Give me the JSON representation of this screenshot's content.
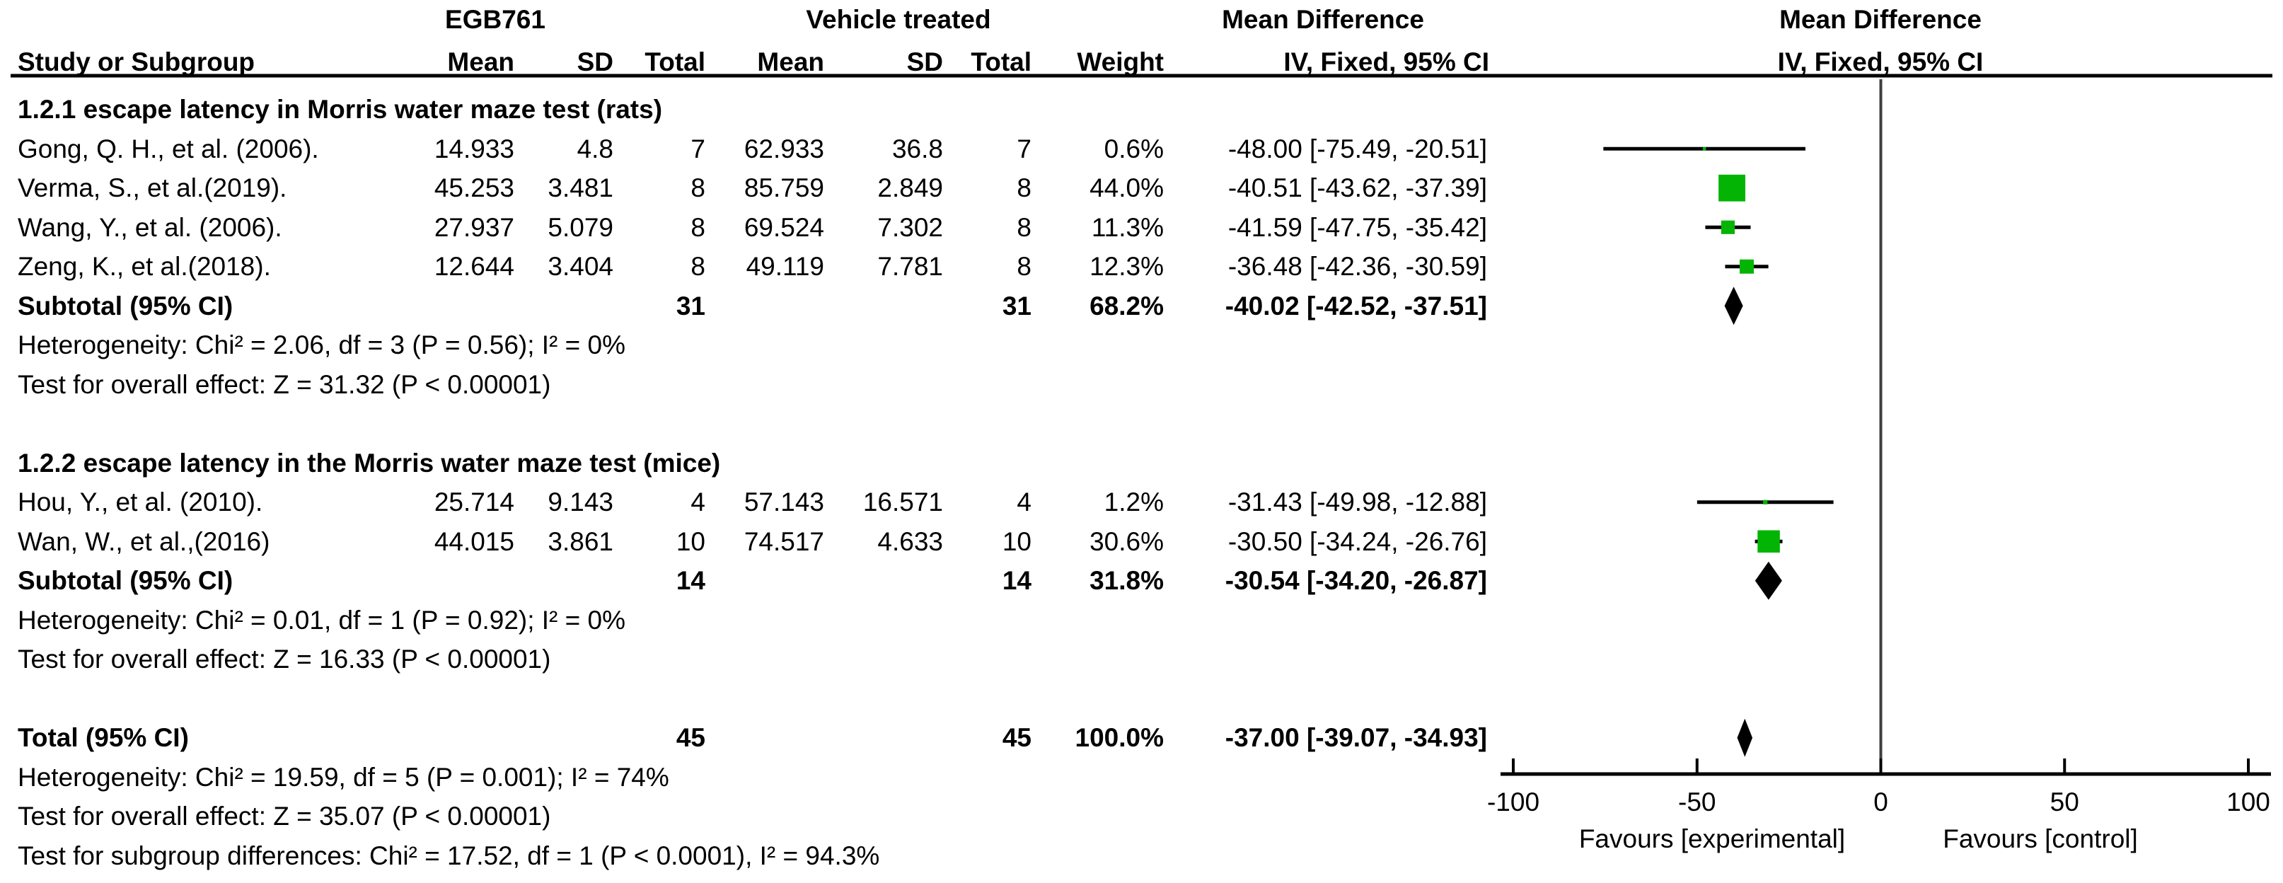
{
  "header": {
    "groups": {
      "egb761": "EGB761",
      "vehicle": "Vehicle treated",
      "md_text_col": "Mean Difference",
      "md_plot_col": "Mean Difference"
    },
    "cols": {
      "study": "Study or Subgroup",
      "mean1": "Mean",
      "sd1": "SD",
      "total1": "Total",
      "mean2": "Mean",
      "sd2": "SD",
      "total2": "Total",
      "weight": "Weight",
      "ci": "IV, Fixed, 95% CI",
      "ci_plot": "IV, Fixed, 95% CI"
    }
  },
  "rows": [
    {
      "type": "subgroup_header",
      "label": "1.2.1 escape latency in Morris water maze test (rats)"
    },
    {
      "type": "study",
      "study": "Gong, Q. H., et al. (2006).",
      "mean1": "14.933",
      "sd1": "4.8",
      "total1": "7",
      "mean2": "62.933",
      "sd2": "36.8",
      "total2": "7",
      "weight": "0.6%",
      "ci_text": "-48.00 [-75.49, -20.51]",
      "md": -48.0,
      "lo": -75.49,
      "hi": -20.51,
      "weight_pct": 0.6
    },
    {
      "type": "study",
      "study": "Verma, S., et al.(2019).",
      "mean1": "45.253",
      "sd1": "3.481",
      "total1": "8",
      "mean2": "85.759",
      "sd2": "2.849",
      "total2": "8",
      "weight": "44.0%",
      "ci_text": "-40.51 [-43.62, -37.39]",
      "md": -40.51,
      "lo": -43.62,
      "hi": -37.39,
      "weight_pct": 44.0
    },
    {
      "type": "study",
      "study": "Wang, Y., et al. (2006).",
      "mean1": "27.937",
      "sd1": "5.079",
      "total1": "8",
      "mean2": "69.524",
      "sd2": "7.302",
      "total2": "8",
      "weight": "11.3%",
      "ci_text": "-41.59 [-47.75, -35.42]",
      "md": -41.59,
      "lo": -47.75,
      "hi": -35.42,
      "weight_pct": 11.3
    },
    {
      "type": "study",
      "study": "Zeng, K., et al.(2018).",
      "mean1": "12.644",
      "sd1": "3.404",
      "total1": "8",
      "mean2": "49.119",
      "sd2": "7.781",
      "total2": "8",
      "weight": "12.3%",
      "ci_text": "-36.48 [-42.36, -30.59]",
      "md": -36.48,
      "lo": -42.36,
      "hi": -30.59,
      "weight_pct": 12.3
    },
    {
      "type": "subtotal",
      "label": "Subtotal (95% CI)",
      "total1": "31",
      "total2": "31",
      "weight": "68.2%",
      "ci_text": "-40.02 [-42.52, -37.51]",
      "md": -40.02,
      "lo": -42.52,
      "hi": -37.51
    },
    {
      "type": "note",
      "label": "Heterogeneity: Chi² = 2.06, df = 3 (P = 0.56); I² = 0%"
    },
    {
      "type": "note",
      "label": "Test for overall effect: Z = 31.32 (P < 0.00001)"
    },
    {
      "type": "spacer"
    },
    {
      "type": "subgroup_header",
      "label": "1.2.2 escape latency in the Morris water maze test (mice)"
    },
    {
      "type": "study",
      "study": "Hou, Y., et al. (2010).",
      "mean1": "25.714",
      "sd1": "9.143",
      "total1": "4",
      "mean2": "57.143",
      "sd2": "16.571",
      "total2": "4",
      "weight": "1.2%",
      "ci_text": "-31.43 [-49.98, -12.88]",
      "md": -31.43,
      "lo": -49.98,
      "hi": -12.88,
      "weight_pct": 1.2
    },
    {
      "type": "study",
      "study": "Wan, W., et al.,(2016)",
      "mean1": "44.015",
      "sd1": "3.861",
      "total1": "10",
      "mean2": "74.517",
      "sd2": "4.633",
      "total2": "10",
      "weight": "30.6%",
      "ci_text": "-30.50 [-34.24, -26.76]",
      "md": -30.5,
      "lo": -34.24,
      "hi": -26.76,
      "weight_pct": 30.6
    },
    {
      "type": "subtotal",
      "label": "Subtotal (95% CI)",
      "total1": "14",
      "total2": "14",
      "weight": "31.8%",
      "ci_text": "-30.54 [-34.20, -26.87]",
      "md": -30.54,
      "lo": -34.2,
      "hi": -26.87
    },
    {
      "type": "note",
      "label": "Heterogeneity: Chi² = 0.01, df = 1 (P = 0.92); I² = 0%"
    },
    {
      "type": "note",
      "label": "Test for overall effect: Z = 16.33 (P < 0.00001)"
    },
    {
      "type": "spacer"
    },
    {
      "type": "total",
      "label": "Total (95% CI)",
      "total1": "45",
      "total2": "45",
      "weight": "100.0%",
      "ci_text": "-37.00 [-39.07, -34.93]",
      "md": -37.0,
      "lo": -39.07,
      "hi": -34.93
    },
    {
      "type": "note",
      "label": "Heterogeneity: Chi² = 19.59, df = 5 (P = 0.001); I² = 74%"
    },
    {
      "type": "note",
      "label": "Test for overall effect: Z = 35.07 (P < 0.00001)"
    },
    {
      "type": "note",
      "label": "Test for subgroup differences: Chi² = 17.52, df = 1 (P < 0.0001), I² = 94.3%"
    }
  ],
  "chart_data": {
    "type": "scatter",
    "subtype": "forest-plot",
    "title": "Mean Difference, IV, Fixed, 95% CI",
    "xlim": [
      -100,
      100
    ],
    "x_ticks": [
      -100,
      -50,
      0,
      50,
      100
    ],
    "x_left_label": "Favours [experimental]",
    "x_right_label": "Favours [control]",
    "zero_line": 0,
    "subgroups": [
      {
        "label": "1.2.1 escape latency in Morris water maze test (rats)",
        "studies": [
          {
            "study": "Gong, Q. H., et al. (2006).",
            "md": -48.0,
            "ci_low": -75.49,
            "ci_high": -20.51,
            "weight_pct": 0.6
          },
          {
            "study": "Verma, S., et al.(2019).",
            "md": -40.51,
            "ci_low": -43.62,
            "ci_high": -37.39,
            "weight_pct": 44.0
          },
          {
            "study": "Wang, Y., et al. (2006).",
            "md": -41.59,
            "ci_low": -47.75,
            "ci_high": -35.42,
            "weight_pct": 11.3
          },
          {
            "study": "Zeng, K., et al.(2018).",
            "md": -36.48,
            "ci_low": -42.36,
            "ci_high": -30.59,
            "weight_pct": 12.3
          }
        ],
        "subtotal": {
          "md": -40.02,
          "ci_low": -42.52,
          "ci_high": -37.51,
          "weight_pct": 68.2,
          "n1": 31,
          "n2": 31
        },
        "heterogeneity": "Chi² = 2.06, df = 3 (P = 0.56); I² = 0%",
        "overall_effect": "Z = 31.32 (P < 0.00001)"
      },
      {
        "label": "1.2.2 escape latency in the Morris water maze test (mice)",
        "studies": [
          {
            "study": "Hou, Y., et al. (2010).",
            "md": -31.43,
            "ci_low": -49.98,
            "ci_high": -12.88,
            "weight_pct": 1.2
          },
          {
            "study": "Wan, W., et al.,(2016)",
            "md": -30.5,
            "ci_low": -34.24,
            "ci_high": -26.76,
            "weight_pct": 30.6
          }
        ],
        "subtotal": {
          "md": -30.54,
          "ci_low": -34.2,
          "ci_high": -26.87,
          "weight_pct": 31.8,
          "n1": 14,
          "n2": 14
        },
        "heterogeneity": "Chi² = 0.01, df = 1 (P = 0.92); I² = 0%",
        "overall_effect": "Z = 16.33 (P < 0.00001)"
      }
    ],
    "total": {
      "md": -37.0,
      "ci_low": -39.07,
      "ci_high": -34.93,
      "weight_pct": 100.0,
      "n1": 45,
      "n2": 45
    },
    "total_heterogeneity": "Chi² = 19.59, df = 5 (P = 0.001); I² = 74%",
    "total_overall_effect": "Z = 35.07 (P < 0.00001)",
    "subgroup_differences": "Chi² = 17.52, df = 1 (P < 0.0001), I² = 94.3%"
  },
  "colors": {
    "square": "#04B404",
    "diamond": "#000000",
    "ci_line": "#000000",
    "zero_line": "#3F3F3F",
    "axis": "#000000",
    "text": "#000000"
  }
}
